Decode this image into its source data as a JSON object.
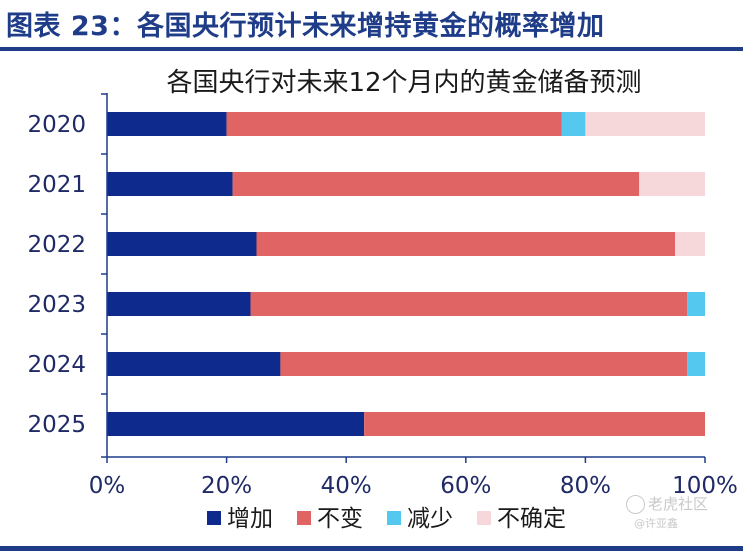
{
  "header": {
    "title": "图表 23：各国央行预计未来增持黄金的概率增加"
  },
  "watermark": {
    "site": "老虎社区",
    "author": "@许亚鑫"
  },
  "colors": {
    "title_blue": "#1f3c88",
    "increase": "#0e2a8c",
    "unchanged": "#e06464",
    "decrease": "#55c8f0",
    "uncertain": "#f6d8da",
    "axis": "#1f3c88"
  },
  "chart_data": {
    "type": "bar",
    "orientation": "horizontal",
    "stacked": true,
    "title": "各国央行对未来12个月内的黄金储备预测",
    "categories": [
      "2020",
      "2021",
      "2022",
      "2023",
      "2024",
      "2025"
    ],
    "series": [
      {
        "name": "增加",
        "values": [
          20,
          21,
          25,
          24,
          29,
          43
        ],
        "color": "#0e2a8c"
      },
      {
        "name": "不变",
        "values": [
          56,
          68,
          70,
          73,
          68,
          57
        ],
        "color": "#e06464"
      },
      {
        "name": "减少",
        "values": [
          4,
          0,
          0,
          3,
          3,
          0
        ],
        "color": "#55c8f0"
      },
      {
        "name": "不确定",
        "values": [
          20,
          11,
          5,
          0,
          0,
          0
        ],
        "color": "#f6d8da"
      }
    ],
    "xlim": [
      0,
      100
    ],
    "x_ticks": [
      "0%",
      "20%",
      "40%",
      "60%",
      "80%",
      "100%"
    ],
    "xlabel": "",
    "ylabel": "",
    "grid": false,
    "legend": "bottom"
  }
}
